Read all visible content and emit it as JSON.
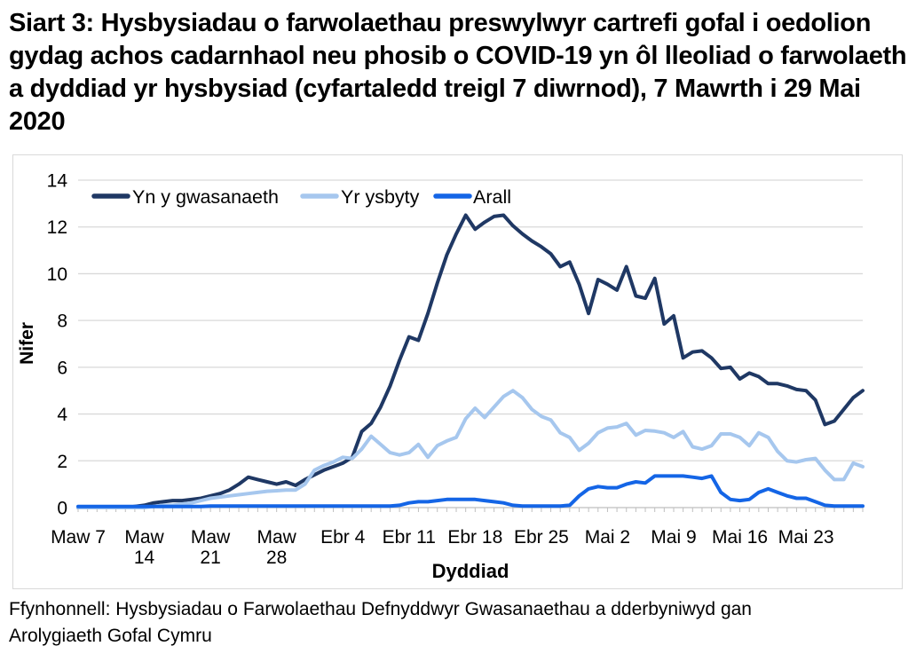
{
  "title": "Siart 3: Hysbysiadau o farwolaethau preswylwyr cartrefi gofal i oedolion gydag achos cadarnhaol neu phosib o COVID-19 yn ôl lleoliad o farwolaeth a dyddiad yr hysbysiad (cyfartaledd treigl 7 diwrnod), 7 Mawrth i 29 Mai 2020",
  "source": "Ffynhonnell: Hysbysiadau o Farwolaethau Defnyddwyr Gwasanaethau a dderbyniwyd gan Arolygiaeth Gofal Cymru",
  "chart_data": {
    "type": "line",
    "title": "Siart 3: Hysbysiadau o farwolaethau preswylwyr cartrefi gofal i oedolion gydag achos cadarnhaol neu phosib o COVID-19 yn ôl lleoliad o farwolaeth a dyddiad yr hysbysiad (cyfartaledd treigl 7 diwrnod), 7 Mawrth i 29 Mai 2020",
    "xlabel": "Dyddiad",
    "ylabel": "Nifer",
    "ylim": [
      0,
      14
    ],
    "yticks": [
      0,
      2,
      4,
      6,
      8,
      10,
      12,
      14
    ],
    "grid": "horizontal",
    "legend_position": "top-inside",
    "date_range": "7 Mawrth - 29 Mai 2020",
    "n_points": 84,
    "x_tick_days": [
      0,
      7,
      14,
      21,
      28,
      35,
      42,
      49,
      56,
      63,
      70,
      77
    ],
    "x_tick_labels": [
      [
        "Maw 7"
      ],
      [
        "Maw",
        "14"
      ],
      [
        "Maw",
        "21"
      ],
      [
        "Maw",
        "28"
      ],
      [
        "Ebr 4"
      ],
      [
        "Ebr 11"
      ],
      [
        "Ebr 18"
      ],
      [
        "Ebr 25"
      ],
      [
        "Mai 2"
      ],
      [
        "Mai 9"
      ],
      [
        "Mai 16"
      ],
      [
        "Mai 23"
      ]
    ],
    "colors": {
      "grid": "#d9d9d9",
      "axis": "#bfbfbf",
      "text": "#000000"
    },
    "series": [
      {
        "name": "Yn y gwasanaeth",
        "color": "#1f3864",
        "values": [
          0,
          0,
          0,
          0,
          0,
          0,
          0.05,
          0.1,
          0.2,
          0.25,
          0.3,
          0.3,
          0.35,
          0.4,
          0.5,
          0.6,
          0.75,
          1.0,
          1.3,
          1.2,
          1.1,
          1.0,
          1.1,
          0.95,
          1.2,
          1.4,
          1.6,
          1.75,
          1.9,
          2.15,
          3.25,
          3.6,
          4.3,
          5.2,
          6.3,
          7.3,
          7.15,
          8.3,
          9.6,
          10.8,
          11.7,
          12.5,
          11.9,
          12.2,
          12.45,
          12.5,
          12.05,
          11.7,
          11.4,
          11.15,
          10.85,
          10.3,
          10.5,
          9.55,
          8.3,
          9.75,
          9.55,
          9.3,
          10.3,
          9.05,
          8.95,
          9.8,
          7.85,
          8.2,
          6.4,
          6.65,
          6.7,
          6.4,
          5.95,
          6.0,
          5.5,
          5.75,
          5.6,
          5.3,
          5.3,
          5.2,
          5.05,
          5.0,
          4.6,
          3.55,
          3.7,
          4.2,
          4.7,
          5.0
        ]
      },
      {
        "name": "Yr ysbyty",
        "color": "#a6c7ee",
        "values": [
          0,
          0,
          0,
          0,
          0,
          0,
          0,
          0,
          0.05,
          0.1,
          0.1,
          0.15,
          0.2,
          0.3,
          0.4,
          0.45,
          0.5,
          0.55,
          0.6,
          0.65,
          0.7,
          0.72,
          0.75,
          0.75,
          1.0,
          1.6,
          1.8,
          1.95,
          2.15,
          2.1,
          2.5,
          3.05,
          2.7,
          2.35,
          2.25,
          2.35,
          2.7,
          2.15,
          2.65,
          2.85,
          3.0,
          3.8,
          4.25,
          3.85,
          4.3,
          4.75,
          5.0,
          4.7,
          4.2,
          3.9,
          3.75,
          3.2,
          3.0,
          2.45,
          2.75,
          3.2,
          3.4,
          3.45,
          3.6,
          3.1,
          3.3,
          3.27,
          3.2,
          3.0,
          3.25,
          2.6,
          2.5,
          2.65,
          3.15,
          3.15,
          3.0,
          2.65,
          3.2,
          3.0,
          2.4,
          2.0,
          1.95,
          2.05,
          2.1,
          1.6,
          1.2,
          1.2,
          1.9,
          1.75
        ]
      },
      {
        "name": "Arall",
        "color": "#1465e6",
        "values": [
          0.05,
          0.05,
          0.05,
          0.05,
          0.05,
          0.05,
          0.05,
          0.05,
          0.05,
          0.05,
          0.05,
          0.05,
          0.05,
          0.05,
          0.07,
          0.07,
          0.07,
          0.07,
          0.07,
          0.07,
          0.07,
          0.07,
          0.07,
          0.07,
          0.07,
          0.07,
          0.07,
          0.07,
          0.07,
          0.07,
          0.07,
          0.07,
          0.07,
          0.07,
          0.1,
          0.2,
          0.25,
          0.25,
          0.3,
          0.35,
          0.35,
          0.35,
          0.35,
          0.3,
          0.25,
          0.2,
          0.1,
          0.07,
          0.07,
          0.07,
          0.07,
          0.07,
          0.1,
          0.5,
          0.8,
          0.9,
          0.85,
          0.85,
          1.0,
          1.1,
          1.05,
          1.35,
          1.35,
          1.35,
          1.35,
          1.3,
          1.25,
          1.35,
          0.65,
          0.35,
          0.3,
          0.35,
          0.65,
          0.8,
          0.65,
          0.5,
          0.4,
          0.4,
          0.25,
          0.1,
          0.07,
          0.07,
          0.07,
          0.07
        ]
      }
    ]
  }
}
